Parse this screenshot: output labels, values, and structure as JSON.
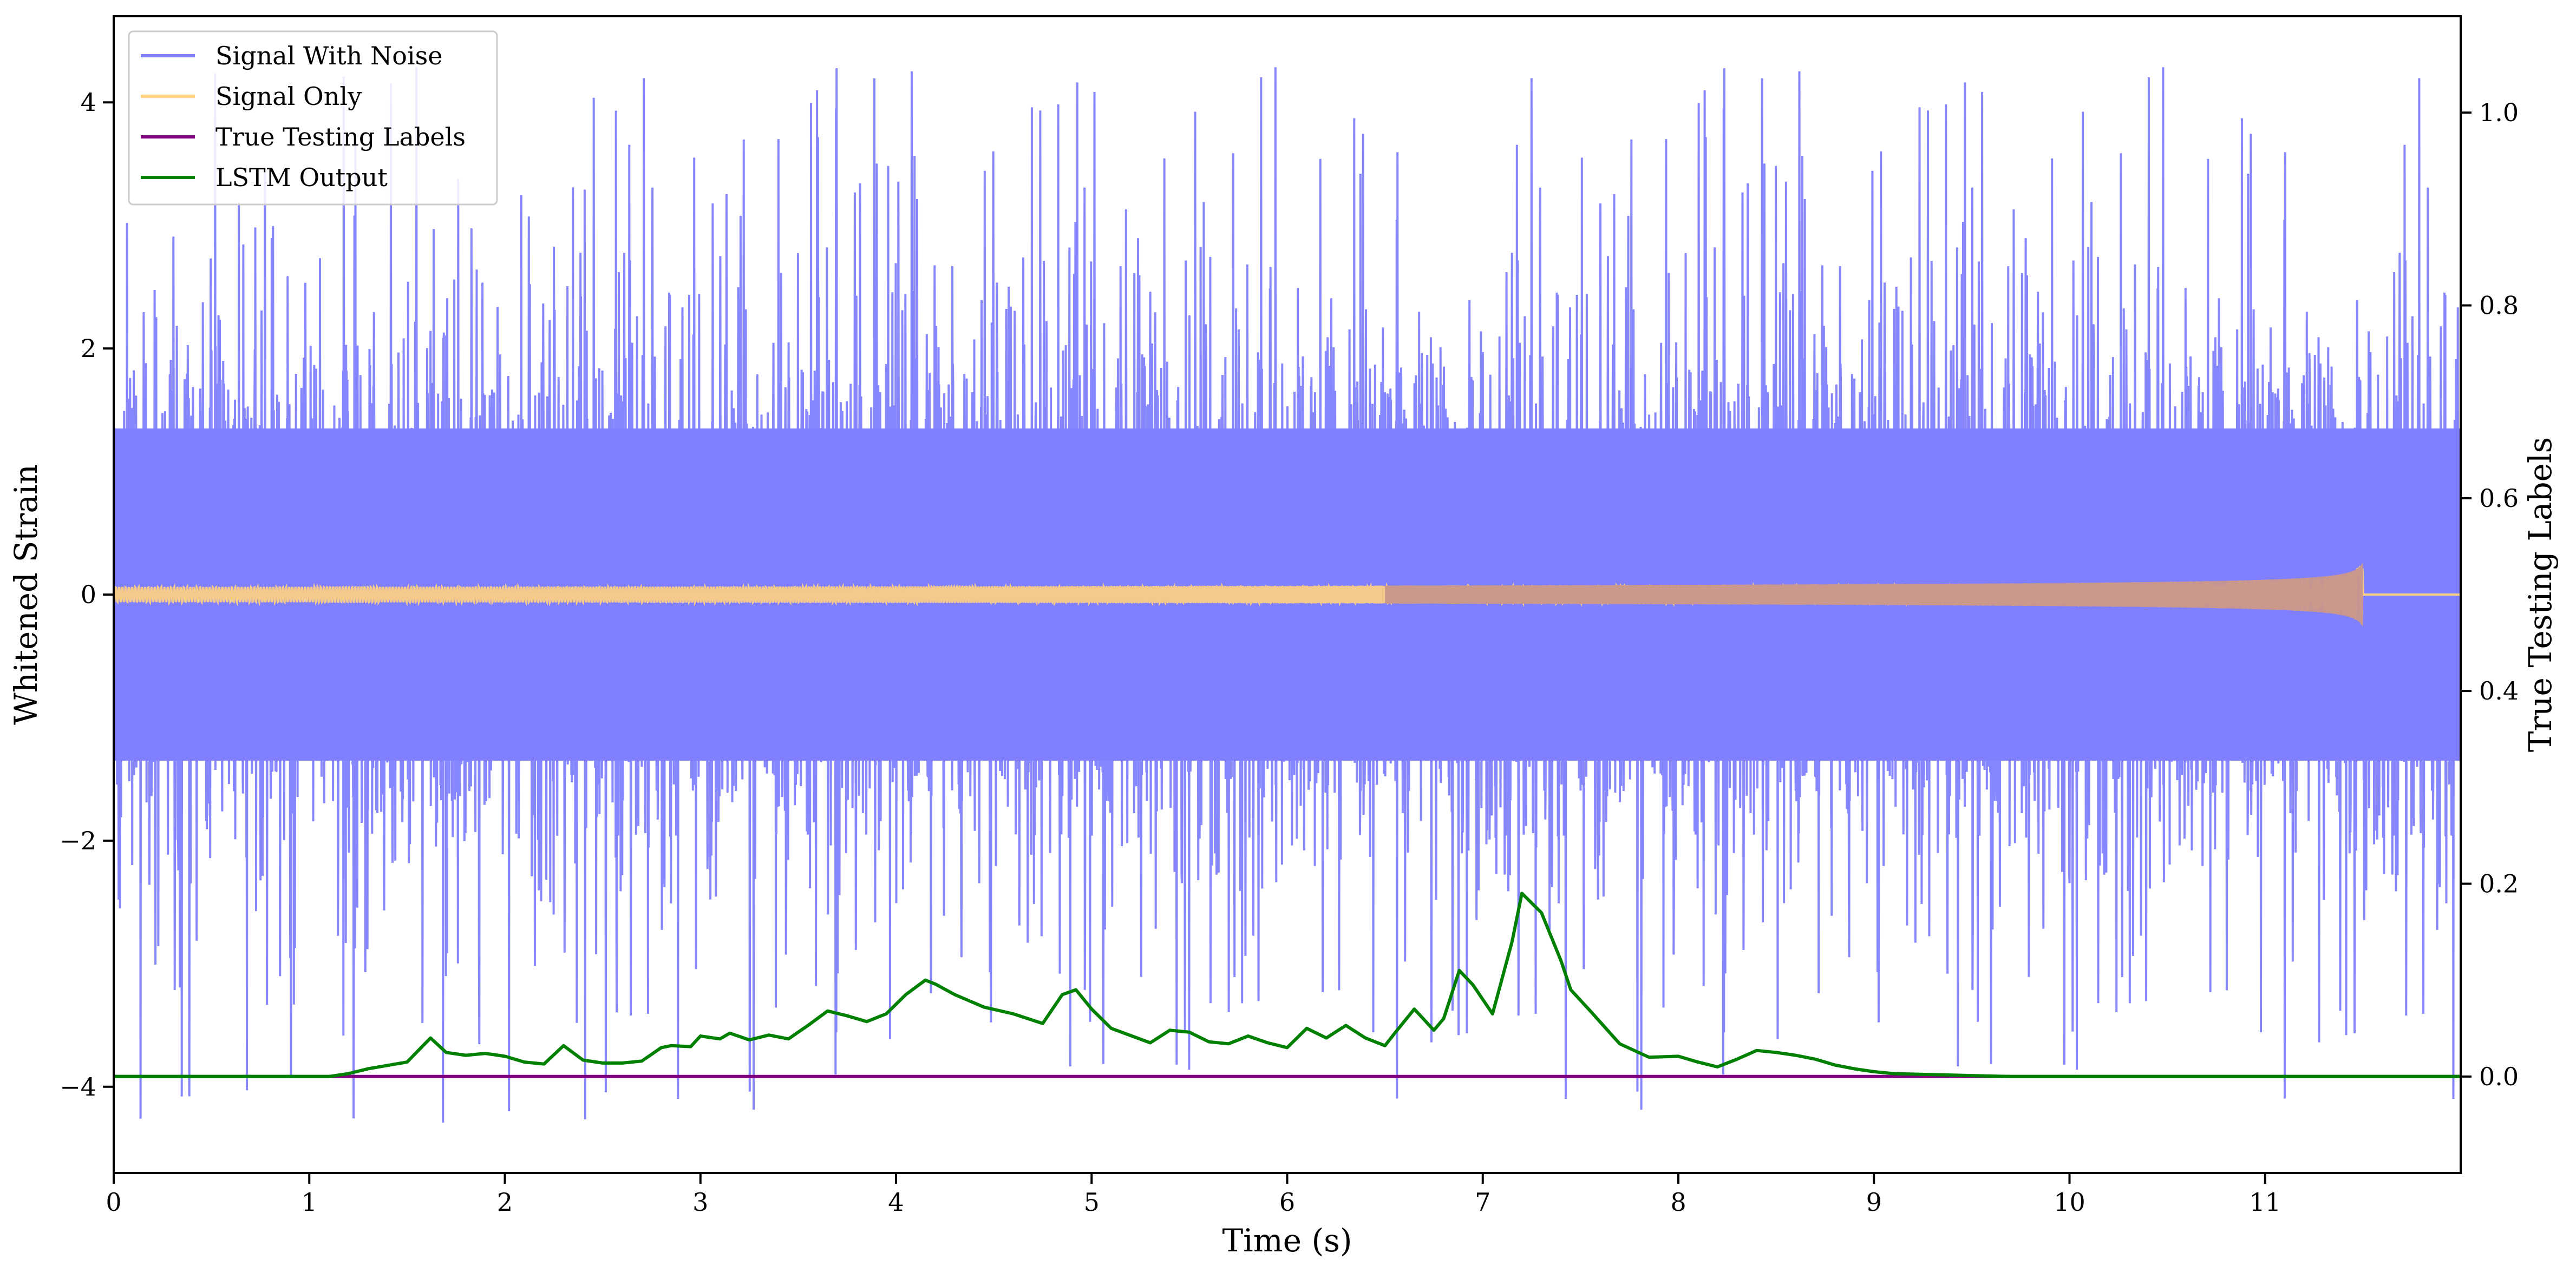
{
  "chart_data": {
    "type": "line",
    "xlabel": "Time (s)",
    "ylabel": "Whitened Strain",
    "y2label": "True Testing Labels",
    "xlim": [
      0,
      12
    ],
    "ylim": [
      -4.7,
      4.7
    ],
    "y2lim": [
      -0.1,
      1.1
    ],
    "xticks": [
      0,
      1,
      2,
      3,
      4,
      5,
      6,
      7,
      8,
      9,
      10,
      11
    ],
    "yticks": [
      -4,
      -2,
      0,
      2,
      4
    ],
    "y2ticks": [
      0.0,
      0.2,
      0.4,
      0.6,
      0.8,
      1.0
    ],
    "grid": false,
    "legend_placement": "top-left",
    "series": [
      {
        "name": "Signal With Noise",
        "axis": "left",
        "color": "#8080ff",
        "description": "dense noise, roughly +/-1.5 typical, spikes to about +/-4",
        "envelope": {
          "core": 1.35,
          "spike_max": 4.3
        }
      },
      {
        "name": "Signal Only",
        "axis": "left",
        "color": "#ffd27f",
        "description": "chirp near 0, amplitude growing to about 0.25 at 11.5 s, then flat",
        "chirp": {
          "end_time": 11.5,
          "peak_amplitude": 0.25
        }
      },
      {
        "name": "True Testing Labels",
        "axis": "right",
        "color": "#800080",
        "x": [
          0,
          12
        ],
        "values": [
          0.0,
          0.0
        ]
      },
      {
        "name": "LSTM Output",
        "axis": "right",
        "color": "#008000",
        "x": [
          0,
          0.8,
          1.1,
          1.2,
          1.3,
          1.5,
          1.62,
          1.7,
          1.8,
          1.9,
          2.0,
          2.1,
          2.2,
          2.3,
          2.4,
          2.5,
          2.6,
          2.7,
          2.8,
          2.85,
          2.95,
          3.0,
          3.1,
          3.15,
          3.25,
          3.35,
          3.45,
          3.55,
          3.65,
          3.75,
          3.85,
          3.95,
          4.05,
          4.15,
          4.2,
          4.3,
          4.45,
          4.6,
          4.75,
          4.85,
          4.92,
          5.0,
          5.1,
          5.3,
          5.4,
          5.5,
          5.6,
          5.7,
          5.8,
          5.9,
          6.0,
          6.1,
          6.2,
          6.3,
          6.4,
          6.5,
          6.55,
          6.65,
          6.75,
          6.8,
          6.88,
          6.95,
          7.05,
          7.15,
          7.2,
          7.3,
          7.4,
          7.45,
          7.55,
          7.7,
          7.85,
          8.0,
          8.1,
          8.2,
          8.3,
          8.4,
          8.5,
          8.6,
          8.7,
          8.8,
          8.9,
          9.0,
          9.1,
          9.3,
          9.5,
          9.7,
          10.0,
          12.0
        ],
        "values": [
          0.0,
          0.0,
          0.0,
          0.003,
          0.008,
          0.015,
          0.04,
          0.025,
          0.022,
          0.024,
          0.021,
          0.015,
          0.013,
          0.032,
          0.017,
          0.014,
          0.014,
          0.016,
          0.03,
          0.032,
          0.031,
          0.042,
          0.039,
          0.045,
          0.038,
          0.043,
          0.039,
          0.053,
          0.068,
          0.063,
          0.057,
          0.065,
          0.085,
          0.1,
          0.096,
          0.085,
          0.072,
          0.065,
          0.055,
          0.085,
          0.09,
          0.07,
          0.05,
          0.035,
          0.048,
          0.046,
          0.036,
          0.034,
          0.042,
          0.035,
          0.03,
          0.05,
          0.04,
          0.053,
          0.04,
          0.032,
          0.045,
          0.07,
          0.048,
          0.06,
          0.11,
          0.095,
          0.065,
          0.14,
          0.19,
          0.17,
          0.12,
          0.09,
          0.068,
          0.034,
          0.02,
          0.021,
          0.015,
          0.01,
          0.018,
          0.027,
          0.025,
          0.022,
          0.018,
          0.012,
          0.008,
          0.005,
          0.003,
          0.002,
          0.001,
          0.0,
          0.0,
          0.0
        ]
      }
    ]
  }
}
